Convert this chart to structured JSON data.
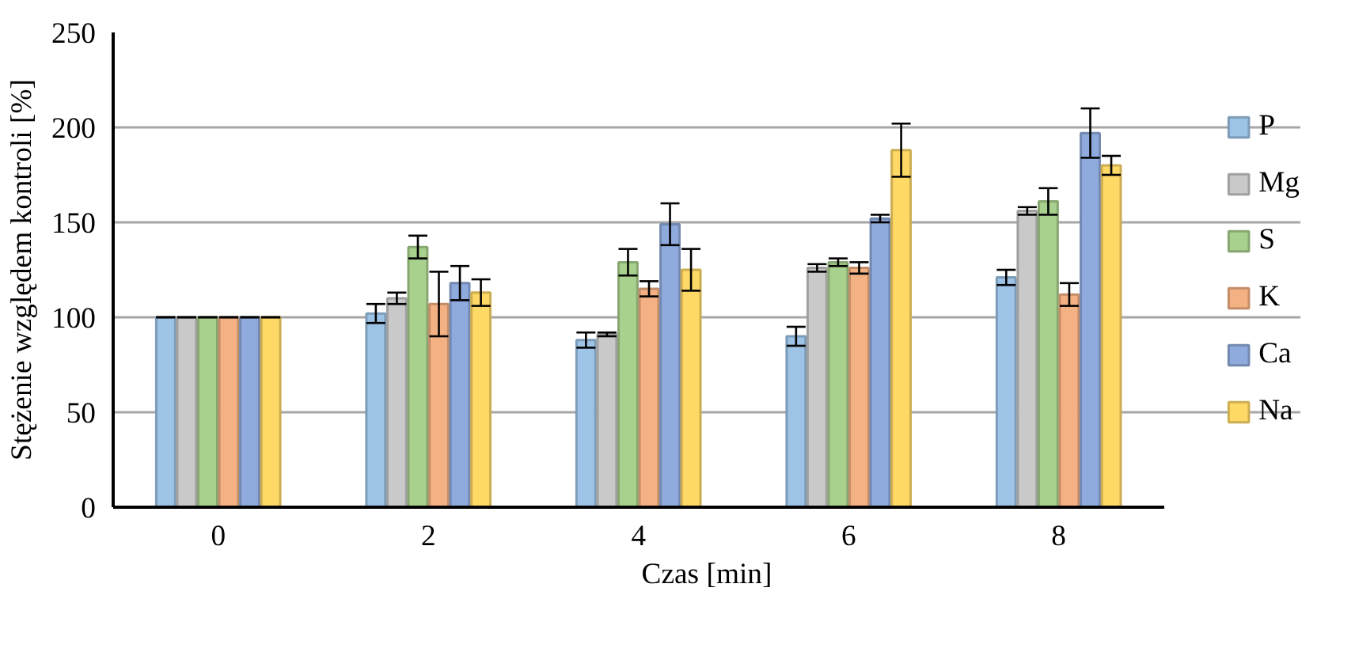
{
  "chart_data": {
    "type": "bar",
    "xlabel": "Czas [min]",
    "ylabel": "Stężenie względem kontroli [%]",
    "categories": [
      "0",
      "2",
      "4",
      "6",
      "8"
    ],
    "ylim": [
      0,
      250
    ],
    "yticks": [
      0,
      50,
      100,
      150,
      200,
      250
    ],
    "grid": "y",
    "legend": "right",
    "series": [
      {
        "name": "P",
        "color": "#9dc3e6",
        "values": [
          100,
          102,
          88,
          90,
          121
        ],
        "errors": [
          0,
          5,
          4,
          5,
          4
        ]
      },
      {
        "name": "Mg",
        "color": "#c9c9c9",
        "values": [
          100,
          110,
          91,
          126,
          156
        ],
        "errors": [
          0,
          3,
          1,
          2,
          2
        ]
      },
      {
        "name": "S",
        "color": "#a9d18e",
        "values": [
          100,
          137,
          129,
          129,
          161
        ],
        "errors": [
          0,
          6,
          7,
          2,
          7
        ]
      },
      {
        "name": "K",
        "color": "#f4b183",
        "values": [
          100,
          107,
          115,
          126,
          112
        ],
        "errors": [
          0,
          17,
          4,
          3,
          6
        ]
      },
      {
        "name": "Ca",
        "color": "#8faadc",
        "values": [
          100,
          118,
          149,
          152,
          197
        ],
        "errors": [
          0,
          9,
          11,
          2,
          13
        ]
      },
      {
        "name": "Na",
        "color": "#ffd966",
        "values": [
          100,
          113,
          125,
          188,
          180
        ],
        "errors": [
          0,
          7,
          11,
          14,
          5
        ]
      }
    ]
  }
}
